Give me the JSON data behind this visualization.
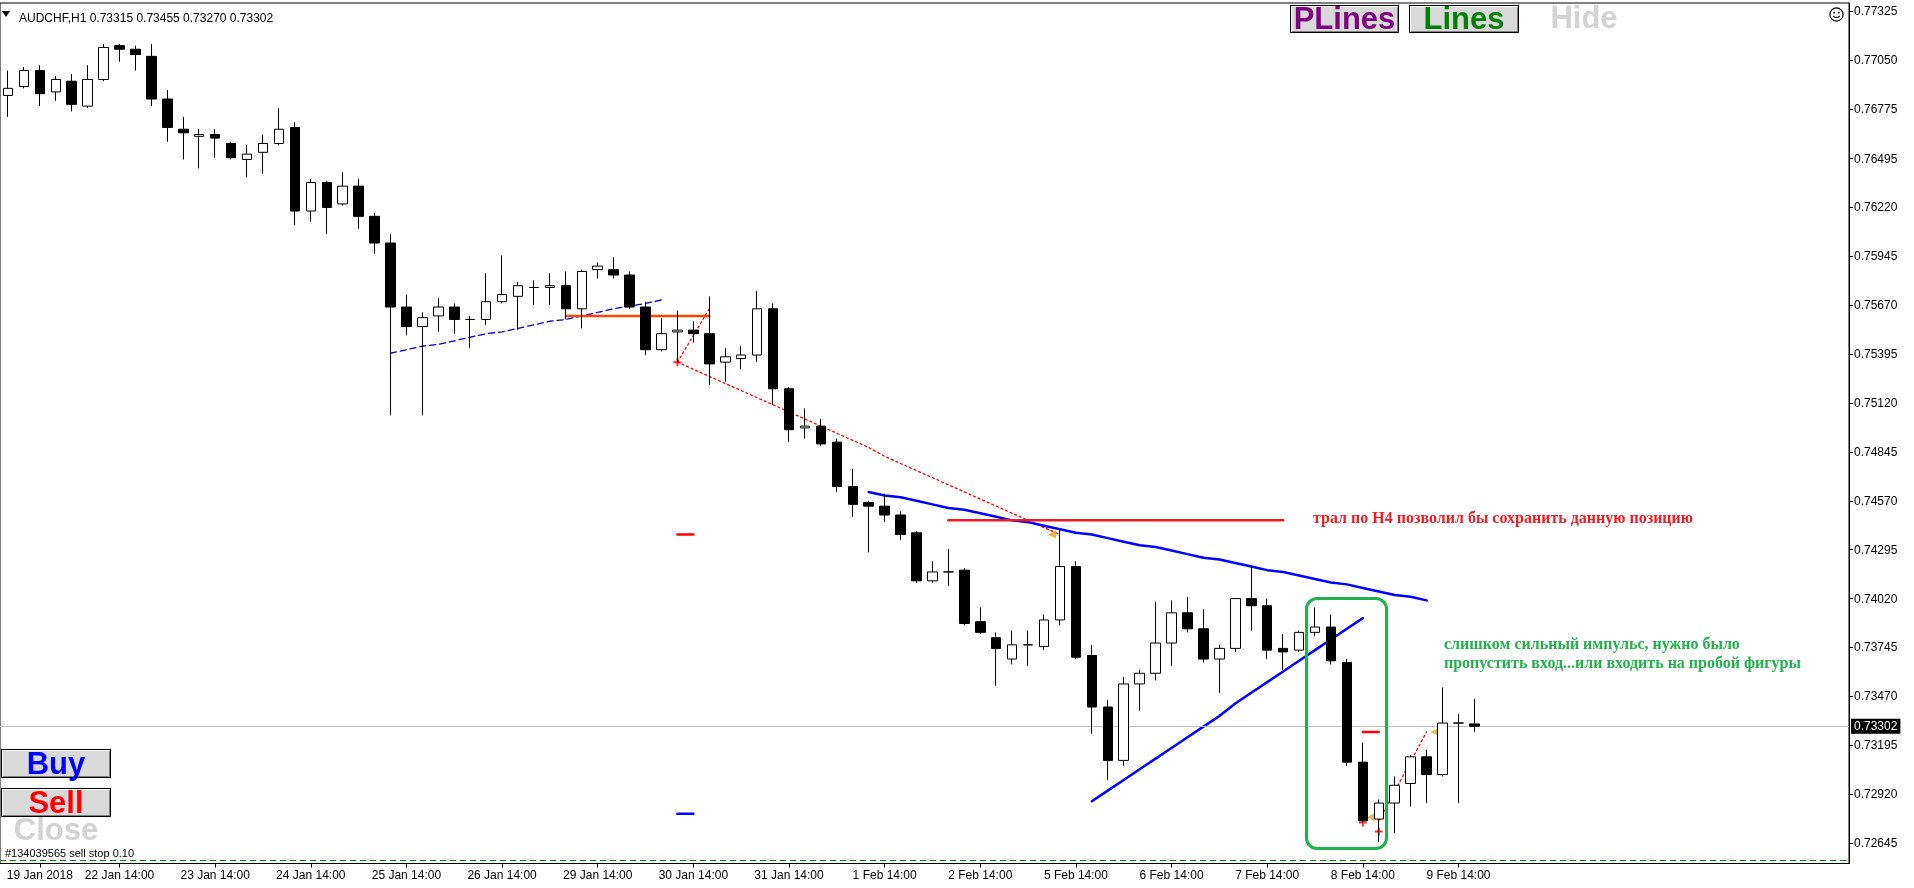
{
  "chart_data": {
    "type": "candlestick",
    "title": "AUDCHF,H1 0.73315 0.73455 0.73270 0.73302",
    "color": "#000000",
    "categories": [
      null,
      null,
      "19 Jan 2018",
      null,
      null,
      null,
      null,
      "22 Jan 14:00",
      null,
      null,
      null,
      null,
      null,
      "23 Jan 14:00",
      null,
      null,
      null,
      null,
      null,
      "24 Jan 14:00",
      null,
      null,
      null,
      null,
      null,
      "25 Jan 14:00",
      null,
      null,
      null,
      null,
      null,
      "26 Jan 14:00",
      null,
      null,
      null,
      null,
      null,
      "29 Jan 14:00",
      null,
      null,
      null,
      null,
      null,
      "30 Jan 14:00",
      null,
      null,
      null,
      null,
      null,
      "31 Jan 14:00",
      null,
      null,
      null,
      null,
      null,
      "1 Feb 14:00",
      null,
      null,
      null,
      null,
      null,
      "2 Feb 14:00",
      null,
      null,
      null,
      null,
      null,
      "5 Feb 14:00",
      null,
      null,
      null,
      null,
      null,
      "6 Feb 14:00",
      null,
      null,
      null,
      null,
      null,
      "7 Feb 14:00",
      null,
      null,
      null,
      null,
      null,
      "8 Feb 14:00",
      null,
      null,
      null,
      null,
      null,
      "9 Feb 14:00",
      null,
      null,
      null,
      null,
      null,
      null,
      null,
      null,
      null,
      null,
      null,
      null,
      null,
      null,
      null,
      null,
      null,
      null,
      null,
      null,
      null,
      null,
      null,
      null
    ],
    "ohlc": [
      [
        0.7685,
        0.7699,
        0.7673,
        0.7689
      ],
      [
        0.769,
        0.7701,
        0.7689,
        0.7699
      ],
      [
        0.7699,
        0.7702,
        0.7679,
        0.7686
      ],
      [
        0.7687,
        0.7696,
        0.7682,
        0.7694
      ],
      [
        0.7693,
        0.7697,
        0.7676,
        0.768
      ],
      [
        0.7679,
        0.7702,
        0.7678,
        0.7694
      ],
      [
        0.7694,
        0.7714,
        0.7693,
        0.7712
      ],
      [
        0.7713,
        0.7714,
        0.7704,
        0.7711
      ],
      [
        0.7711,
        0.7713,
        0.7699,
        0.7708
      ],
      [
        0.7707,
        0.7714,
        0.7679,
        0.7683
      ],
      [
        0.7683,
        0.7688,
        0.7659,
        0.7667
      ],
      [
        0.7666,
        0.7673,
        0.7649,
        0.7664
      ],
      [
        0.7662,
        0.7666,
        0.7644,
        0.7663
      ],
      [
        0.7663,
        0.7666,
        0.765,
        0.7661
      ],
      [
        0.7658,
        0.7659,
        0.7649,
        0.765
      ],
      [
        0.7649,
        0.7657,
        0.7639,
        0.7652
      ],
      [
        0.7653,
        0.7663,
        0.7641,
        0.7658
      ],
      [
        0.7658,
        0.7678,
        0.7657,
        0.7666
      ],
      [
        0.7667,
        0.767,
        0.7612,
        0.762
      ],
      [
        0.762,
        0.7638,
        0.7614,
        0.7636
      ],
      [
        0.7636,
        0.7637,
        0.7607,
        0.7622
      ],
      [
        0.7624,
        0.7642,
        0.7623,
        0.7634
      ],
      [
        0.7634,
        0.7638,
        0.761,
        0.7617
      ],
      [
        0.7617,
        0.7619,
        0.7596,
        0.7602
      ],
      [
        0.7602,
        0.7607,
        0.7505,
        0.7566
      ],
      [
        0.7566,
        0.7573,
        0.755,
        0.7555
      ],
      [
        0.7555,
        0.7563,
        0.7505,
        0.756
      ],
      [
        0.7561,
        0.7571,
        0.7552,
        0.7566
      ],
      [
        0.7566,
        0.7568,
        0.7551,
        0.7559
      ],
      [
        0.7559,
        0.7561,
        0.7543,
        0.7559
      ],
      [
        0.7559,
        0.7585,
        0.7556,
        0.7569
      ],
      [
        0.7569,
        0.7595,
        0.7568,
        0.7573
      ],
      [
        0.7572,
        0.758,
        0.7553,
        0.7578
      ],
      [
        0.7577,
        0.7581,
        0.7567,
        0.7577
      ],
      [
        0.7577,
        0.7585,
        0.7567,
        0.7578
      ],
      [
        0.7578,
        0.7586,
        0.7559,
        0.7565
      ],
      [
        0.7565,
        0.7587,
        0.7554,
        0.7586
      ],
      [
        0.7587,
        0.7591,
        0.7582,
        0.7589
      ],
      [
        0.7587,
        0.7594,
        0.7582,
        0.7584
      ],
      [
        0.7584,
        0.7586,
        0.7565,
        0.7566
      ],
      [
        0.7566,
        0.7569,
        0.7539,
        0.7542
      ],
      [
        0.7542,
        0.756,
        0.7541,
        0.7551
      ],
      [
        0.7552,
        0.7564,
        0.7535,
        0.7553
      ],
      [
        0.7553,
        0.7558,
        0.7546,
        0.7551
      ],
      [
        0.7551,
        0.7572,
        0.7522,
        0.7534
      ],
      [
        0.7535,
        0.7543,
        0.7524,
        0.7538
      ],
      [
        0.7537,
        0.7544,
        0.7531,
        0.7539
      ],
      [
        0.7539,
        0.7575,
        0.7535,
        0.7565
      ],
      [
        0.7565,
        0.7568,
        0.7511,
        0.752
      ],
      [
        0.752,
        0.7521,
        0.749,
        0.7497
      ],
      [
        0.7498,
        0.7509,
        0.7492,
        0.7499
      ],
      [
        0.7499,
        0.7503,
        0.7488,
        0.7489
      ],
      [
        0.749,
        0.7492,
        0.7462,
        0.7465
      ],
      [
        0.7465,
        0.7475,
        0.7448,
        0.7455
      ],
      [
        0.7456,
        0.7457,
        0.7428,
        0.7454
      ],
      [
        0.7454,
        0.7461,
        0.7445,
        0.7449
      ],
      [
        0.7449,
        0.7451,
        0.7435,
        0.7438
      ],
      [
        0.7439,
        0.744,
        0.7411,
        0.7412
      ],
      [
        0.7412,
        0.7423,
        0.7411,
        0.7417
      ],
      [
        0.7417,
        0.743,
        0.7409,
        0.7417
      ],
      [
        0.7418,
        0.7419,
        0.7387,
        0.7388
      ],
      [
        0.7389,
        0.7397,
        0.7382,
        0.7383
      ],
      [
        0.738,
        0.7383,
        0.7353,
        0.7374
      ],
      [
        0.7368,
        0.7384,
        0.7365,
        0.7376
      ],
      [
        0.7376,
        0.7384,
        0.7364,
        0.7376
      ],
      [
        0.7375,
        0.7393,
        0.7373,
        0.739
      ],
      [
        0.739,
        0.7441,
        0.7387,
        0.742
      ],
      [
        0.742,
        0.7423,
        0.7368,
        0.7369
      ],
      [
        0.737,
        0.7376,
        0.7326,
        0.7341
      ],
      [
        0.7341,
        0.7345,
        0.73,
        0.7311
      ],
      [
        0.7311,
        0.7358,
        0.7308,
        0.7354
      ],
      [
        0.7354,
        0.7362,
        0.7339,
        0.736
      ],
      [
        0.736,
        0.74,
        0.7356,
        0.7377
      ],
      [
        0.7377,
        0.7401,
        0.7364,
        0.7394
      ],
      [
        0.7394,
        0.7403,
        0.7383,
        0.7385
      ],
      [
        0.7385,
        0.7396,
        0.7366,
        0.7368
      ],
      [
        0.7368,
        0.7376,
        0.7349,
        0.7374
      ],
      [
        0.7374,
        0.7402,
        0.7372,
        0.7402
      ],
      [
        0.7402,
        0.742,
        0.7384,
        0.7398
      ],
      [
        0.7398,
        0.7402,
        0.7368,
        0.7373
      ],
      [
        0.7374,
        0.7382,
        0.7362,
        0.7372
      ],
      [
        0.7373,
        0.7384,
        0.7372,
        0.7383
      ],
      [
        0.7383,
        0.7397,
        0.7381,
        0.7386
      ],
      [
        0.7386,
        0.7393,
        0.7365,
        0.7367
      ],
      [
        0.7366,
        0.7368,
        0.7308,
        0.731
      ],
      [
        0.731,
        0.7321,
        0.7276,
        0.7277
      ],
      [
        0.7278,
        0.7289,
        0.7265,
        0.7287
      ],
      [
        0.7287,
        0.7302,
        0.727,
        0.7297
      ],
      [
        0.7298,
        0.7314,
        0.7285,
        0.7313
      ],
      [
        0.7313,
        0.7317,
        0.7287,
        0.7303
      ],
      [
        0.7303,
        0.7352,
        0.7302,
        0.7332
      ],
      [
        0.7332,
        0.7337,
        0.7287,
        0.7332
      ],
      [
        0.73315,
        0.73455,
        0.7327,
        0.73302
      ],
      null,
      null,
      null,
      null,
      null,
      null,
      null,
      null,
      null,
      null,
      null,
      null,
      null,
      null,
      null,
      null,
      null,
      null,
      null,
      null,
      null,
      null,
      null
    ],
    "series": [
      {
        "type": "line",
        "color": "#0000cd",
        "line_style": "dashed",
        "values": [
          null,
          null,
          null,
          null,
          null,
          null,
          null,
          null,
          null,
          null,
          null,
          null,
          null,
          null,
          null,
          null,
          null,
          null,
          null,
          null,
          null,
          null,
          null,
          null,
          0.754,
          0.7542,
          0.7544,
          0.7545,
          0.7547,
          0.7549,
          0.7551,
          0.7552,
          0.7554,
          0.7556,
          0.7558,
          0.7559,
          0.7561,
          0.7563,
          0.7565,
          null,
          0.7568,
          0.757,
          null,
          null,
          null,
          null,
          null,
          null,
          null,
          null,
          null,
          null,
          null,
          null,
          null,
          null,
          null,
          null,
          null,
          null,
          null,
          null,
          null,
          null,
          null,
          null,
          null,
          null,
          null,
          null,
          null,
          null,
          null,
          null,
          null,
          null,
          null,
          null,
          null,
          null,
          null,
          null,
          null,
          null,
          null,
          null,
          null,
          null,
          null,
          null,
          null,
          null,
          null,
          null,
          null,
          null,
          null,
          null,
          null,
          null,
          null,
          null,
          null,
          null,
          null,
          null,
          null,
          null,
          null,
          null,
          null,
          null,
          null,
          null,
          null,
          null
        ]
      },
      {
        "type": "line",
        "color": "#ff4500",
        "values": [
          null,
          null,
          null,
          null,
          null,
          null,
          null,
          null,
          null,
          null,
          null,
          null,
          null,
          null,
          null,
          null,
          null,
          null,
          null,
          null,
          null,
          null,
          null,
          null,
          null,
          null,
          null,
          null,
          null,
          null,
          null,
          null,
          null,
          null,
          null,
          0.7561,
          0.7561,
          0.7561,
          0.7561,
          0.7561,
          null,
          0.7561,
          0.7561,
          0.7561,
          0.7561,
          null,
          null,
          null,
          null,
          null,
          null,
          null,
          null,
          null,
          null,
          null,
          null,
          null,
          null,
          null,
          null,
          null,
          null,
          null,
          null,
          null,
          null,
          null,
          null,
          null,
          null,
          null,
          null,
          null,
          null,
          null,
          null,
          null,
          null,
          null,
          null,
          null,
          null,
          null,
          null,
          null,
          null,
          null,
          null,
          null,
          null,
          null,
          null,
          null,
          null,
          null,
          null,
          null,
          null,
          null,
          null,
          null,
          null,
          null,
          null,
          null,
          null,
          null,
          null,
          null,
          null,
          null,
          null,
          null,
          null,
          null
        ]
      },
      {
        "type": "line",
        "color": "#ff0000",
        "line_style": "dotted",
        "values": [
          null,
          null,
          null,
          null,
          null,
          null,
          null,
          null,
          null,
          null,
          null,
          null,
          null,
          null,
          null,
          null,
          null,
          null,
          null,
          null,
          null,
          null,
          null,
          null,
          null,
          null,
          null,
          null,
          null,
          null,
          null,
          null,
          null,
          null,
          null,
          null,
          null,
          null,
          null,
          null,
          null,
          null,
          0.7535,
          0.7531,
          0.7527,
          0.7523,
          0.7519,
          0.7515,
          0.7511,
          null,
          0.7503,
          0.7499,
          0.7495,
          0.7491,
          0.7487,
          0.7482,
          0.7478,
          0.7474,
          0.747,
          0.7466,
          0.7462,
          0.7458,
          0.7454,
          0.745,
          0.7446,
          0.7442,
          0.7438,
          null,
          null,
          null,
          null,
          null,
          null,
          null,
          null,
          null,
          null,
          null,
          null,
          null,
          null,
          null,
          null,
          null,
          null,
          null,
          null,
          null,
          null,
          null,
          null,
          null,
          null,
          null,
          null,
          null,
          null,
          null,
          null,
          null,
          null,
          null,
          null,
          null,
          null,
          null,
          null,
          null,
          null,
          null,
          null,
          null,
          null,
          null,
          null,
          null
        ]
      },
      {
        "type": "line",
        "color": "#ff0000",
        "line_style": "dotted",
        "values": [
          null,
          null,
          null,
          null,
          null,
          null,
          null,
          null,
          null,
          null,
          null,
          null,
          null,
          null,
          null,
          null,
          null,
          null,
          null,
          null,
          null,
          null,
          null,
          null,
          null,
          null,
          null,
          null,
          null,
          null,
          null,
          null,
          null,
          null,
          null,
          null,
          null,
          null,
          null,
          null,
          null,
          null,
          0.7535,
          0.755,
          0.7565,
          null,
          null,
          null,
          null,
          null,
          null,
          null,
          null,
          null,
          null,
          null,
          null,
          null,
          null,
          null,
          null,
          null,
          null,
          null,
          null,
          null,
          null,
          null,
          null,
          null,
          null,
          null,
          null,
          null,
          null,
          null,
          null,
          null,
          null,
          null,
          null,
          null,
          null,
          null,
          null,
          null,
          null,
          null,
          null,
          null,
          null,
          null,
          null,
          null,
          null,
          null,
          null,
          null,
          null,
          null,
          null,
          null,
          null,
          null,
          null,
          null,
          null,
          null,
          null,
          null,
          null,
          null,
          null,
          null,
          null,
          null
        ]
      },
      {
        "type": "line",
        "color": "#0000ff",
        "values": [
          null,
          null,
          null,
          null,
          null,
          null,
          null,
          null,
          null,
          null,
          null,
          null,
          null,
          null,
          null,
          null,
          null,
          null,
          null,
          null,
          null,
          null,
          null,
          null,
          null,
          null,
          null,
          null,
          null,
          null,
          null,
          null,
          null,
          null,
          null,
          null,
          null,
          null,
          null,
          null,
          null,
          null,
          null,
          null,
          null,
          null,
          null,
          null,
          null,
          null,
          null,
          null,
          null,
          null,
          0.7462,
          0.746,
          0.7459,
          0.7457,
          0.7455,
          0.7453,
          0.7452,
          0.745,
          0.7448,
          0.7446,
          0.7445,
          0.7443,
          0.7441,
          0.7439,
          0.7438,
          0.7436,
          0.7434,
          0.7432,
          0.7431,
          0.7429,
          0.7427,
          0.7425,
          0.7424,
          0.7422,
          0.742,
          0.7418,
          0.7417,
          0.7415,
          0.7413,
          0.7411,
          0.741,
          0.7408,
          0.7406,
          0.7404,
          0.7403,
          0.7401,
          null,
          null,
          null,
          null,
          null,
          null,
          null,
          null,
          null,
          null,
          null,
          null,
          null,
          null,
          null,
          null,
          null,
          null,
          null,
          null,
          null,
          null,
          null,
          null,
          null,
          null
        ]
      },
      {
        "type": "line",
        "color": "#0000ff",
        "values": [
          null,
          null,
          null,
          null,
          null,
          null,
          null,
          null,
          null,
          null,
          null,
          null,
          null,
          null,
          null,
          null,
          null,
          null,
          null,
          null,
          null,
          null,
          null,
          null,
          null,
          null,
          null,
          null,
          null,
          null,
          null,
          null,
          null,
          null,
          null,
          null,
          null,
          null,
          null,
          null,
          null,
          null,
          null,
          null,
          null,
          null,
          null,
          null,
          null,
          null,
          null,
          null,
          null,
          null,
          null,
          null,
          null,
          null,
          null,
          null,
          null,
          null,
          null,
          null,
          null,
          null,
          null,
          null,
          0.7288,
          0.7294,
          0.73,
          0.7306,
          0.7312,
          0.7318,
          0.7324,
          0.733,
          0.7336,
          0.7343,
          0.7349,
          0.7355,
          0.7361,
          0.7367,
          0.7373,
          null,
          0.7385,
          0.7391,
          null,
          null,
          null,
          null,
          null,
          null,
          null,
          null,
          null,
          null,
          null,
          null,
          null,
          null,
          null,
          null,
          null,
          null,
          null,
          null,
          null,
          null,
          null,
          null,
          null,
          null,
          null,
          null,
          null,
          null
        ]
      },
      {
        "type": "line",
        "color": "#ed1c24",
        "values": [
          null,
          null,
          null,
          null,
          null,
          null,
          null,
          null,
          null,
          null,
          null,
          null,
          null,
          null,
          null,
          null,
          null,
          null,
          null,
          null,
          null,
          null,
          null,
          null,
          null,
          null,
          null,
          null,
          null,
          null,
          null,
          null,
          null,
          null,
          null,
          null,
          null,
          null,
          null,
          null,
          null,
          null,
          null,
          null,
          null,
          null,
          null,
          null,
          null,
          null,
          null,
          null,
          null,
          null,
          null,
          null,
          null,
          null,
          null,
          0.7446,
          0.7446,
          0.7446,
          0.7446,
          0.7446,
          0.7446,
          0.7446,
          0.7446,
          0.7446,
          0.7446,
          0.7446,
          0.7446,
          0.7446,
          0.7446,
          0.7446,
          0.7446,
          0.7446,
          0.7446,
          0.7446,
          0.7446,
          0.7446,
          0.7446,
          null,
          null,
          null,
          null,
          null,
          null,
          null,
          null,
          null,
          null,
          null,
          null,
          null,
          null,
          null,
          null,
          null,
          null,
          null,
          null,
          null,
          null,
          null,
          null,
          null,
          null,
          null,
          null,
          null,
          null,
          null,
          null,
          null,
          null,
          null
        ]
      },
      {
        "type": "line",
        "color": "#ff0000",
        "line_style": "dotted",
        "values": [
          null,
          null,
          null,
          null,
          null,
          null,
          null,
          null,
          null,
          null,
          null,
          null,
          null,
          null,
          null,
          null,
          null,
          null,
          null,
          null,
          null,
          null,
          null,
          null,
          null,
          null,
          null,
          null,
          null,
          null,
          null,
          null,
          null,
          null,
          null,
          null,
          null,
          null,
          null,
          null,
          null,
          null,
          null,
          null,
          null,
          null,
          null,
          null,
          null,
          null,
          null,
          null,
          null,
          null,
          null,
          null,
          null,
          null,
          null,
          null,
          null,
          null,
          null,
          null,
          null,
          null,
          null,
          null,
          null,
          null,
          null,
          null,
          null,
          null,
          null,
          null,
          null,
          null,
          null,
          null,
          null,
          null,
          null,
          null,
          null,
          null,
          0.7277,
          null,
          null,
          0.7327,
          null,
          null,
          null,
          null,
          null,
          null,
          null,
          null,
          null,
          null,
          null,
          null,
          null,
          null,
          null,
          null,
          null,
          null,
          null,
          null,
          null,
          null,
          null,
          null,
          null,
          null
        ]
      },
      {
        "type": "line",
        "color": "#ff0000",
        "values": [
          null,
          null,
          null,
          null,
          null,
          null,
          null,
          null,
          null,
          null,
          null,
          null,
          null,
          null,
          null,
          null,
          null,
          null,
          null,
          null,
          null,
          null,
          null,
          null,
          null,
          null,
          null,
          null,
          null,
          null,
          null,
          null,
          null,
          null,
          null,
          null,
          null,
          null,
          null,
          null,
          null,
          null,
          0.7438,
          0.7438,
          null,
          null,
          null,
          null,
          null,
          null,
          null,
          null,
          null,
          null,
          null,
          null,
          null,
          null,
          null,
          null,
          null,
          null,
          null,
          null,
          null,
          null,
          null,
          null,
          null,
          null,
          null,
          null,
          null,
          null,
          null,
          null,
          null,
          null,
          null,
          null,
          null,
          null,
          null,
          null,
          null,
          null,
          null,
          null,
          null,
          null,
          null,
          null,
          null,
          null,
          null,
          null,
          null,
          null,
          null,
          null,
          null,
          null,
          null,
          null,
          null,
          null,
          null,
          null,
          null,
          null,
          null,
          null,
          null,
          null,
          null,
          null
        ]
      },
      {
        "type": "line",
        "color": "#0000ff",
        "values": [
          null,
          null,
          null,
          null,
          null,
          null,
          null,
          null,
          null,
          null,
          null,
          null,
          null,
          null,
          null,
          null,
          null,
          null,
          null,
          null,
          null,
          null,
          null,
          null,
          null,
          null,
          null,
          null,
          null,
          null,
          null,
          null,
          null,
          null,
          null,
          null,
          null,
          null,
          null,
          null,
          null,
          null,
          0.7281,
          0.7281,
          null,
          null,
          null,
          null,
          null,
          null,
          null,
          null,
          null,
          null,
          null,
          null,
          null,
          null,
          null,
          null,
          null,
          null,
          null,
          null,
          null,
          null,
          null,
          null,
          null,
          null,
          null,
          null,
          null,
          null,
          null,
          null,
          null,
          null,
          null,
          null,
          null,
          null,
          null,
          null,
          null,
          null,
          null,
          null,
          null,
          null,
          null,
          null,
          null,
          null,
          null,
          null,
          null,
          null,
          null,
          null,
          null,
          null,
          null,
          null,
          null,
          null,
          null,
          null,
          null,
          null,
          null,
          null,
          null,
          null,
          null,
          null
        ]
      },
      {
        "type": "line",
        "color": "#ff0000",
        "values": [
          null,
          null,
          null,
          null,
          null,
          null,
          null,
          null,
          null,
          null,
          null,
          null,
          null,
          null,
          null,
          null,
          null,
          null,
          null,
          null,
          null,
          null,
          null,
          null,
          null,
          null,
          null,
          null,
          null,
          null,
          null,
          null,
          null,
          null,
          null,
          null,
          null,
          null,
          null,
          null,
          null,
          null,
          null,
          null,
          null,
          null,
          null,
          null,
          null,
          null,
          null,
          null,
          null,
          null,
          null,
          null,
          null,
          null,
          null,
          null,
          null,
          null,
          null,
          null,
          null,
          null,
          null,
          null,
          null,
          null,
          null,
          null,
          null,
          null,
          null,
          null,
          null,
          null,
          null,
          null,
          null,
          null,
          null,
          null,
          null,
          0.7327,
          0.7327,
          null,
          null,
          null,
          null,
          null,
          null,
          null,
          null,
          null,
          null,
          null,
          null,
          null,
          null,
          null,
          null,
          null,
          null,
          null,
          null,
          null,
          null,
          null,
          null,
          null,
          null,
          null,
          null,
          null
        ]
      },
      {
        "type": "scatter",
        "marker": "triangle",
        "color": "#e6a020",
        "values": [
          null,
          null,
          null,
          null,
          null,
          null,
          null,
          null,
          null,
          null,
          null,
          null,
          null,
          null,
          null,
          null,
          null,
          null,
          null,
          null,
          null,
          null,
          null,
          null,
          null,
          null,
          null,
          null,
          null,
          null,
          null,
          null,
          null,
          null,
          null,
          null,
          null,
          null,
          null,
          null,
          null,
          null,
          null,
          null,
          null,
          null,
          null,
          null,
          null,
          null,
          null,
          null,
          null,
          null,
          null,
          null,
          null,
          null,
          null,
          null,
          null,
          null,
          null,
          null,
          null,
          null,
          0.7438,
          null,
          null,
          null,
          null,
          null,
          null,
          null,
          null,
          null,
          null,
          null,
          null,
          null,
          null,
          null,
          null,
          null,
          null,
          null,
          0.7279,
          null,
          null,
          null,
          0.7327,
          null,
          null,
          null,
          null,
          null,
          null,
          null,
          null,
          null,
          null,
          null,
          null,
          null,
          null,
          null,
          null,
          null,
          null,
          null,
          null,
          null,
          null,
          null,
          null,
          null
        ]
      },
      {
        "type": "scatter",
        "marker": "cross",
        "color": "#ff0000",
        "values": [
          null,
          null,
          null,
          null,
          null,
          null,
          null,
          null,
          null,
          null,
          null,
          null,
          null,
          null,
          null,
          null,
          null,
          null,
          null,
          null,
          null,
          null,
          null,
          null,
          null,
          null,
          null,
          null,
          null,
          null,
          null,
          null,
          null,
          null,
          null,
          null,
          null,
          null,
          null,
          null,
          null,
          null,
          0.7535,
          null,
          null,
          null,
          null,
          null,
          null,
          null,
          null,
          null,
          null,
          null,
          null,
          null,
          null,
          null,
          null,
          null,
          null,
          null,
          null,
          null,
          null,
          null,
          null,
          null,
          null,
          null,
          null,
          null,
          null,
          null,
          null,
          null,
          null,
          null,
          null,
          null,
          null,
          null,
          null,
          null,
          null,
          0.7276,
          0.7271,
          null,
          null,
          null,
          null,
          null,
          null,
          null,
          null,
          null,
          null,
          null,
          null,
          null,
          null,
          null,
          null,
          null,
          null,
          null,
          null,
          null,
          null,
          null,
          null,
          null,
          null,
          null,
          null,
          null
        ]
      }
    ],
    "ref_lines": [
      {
        "axis": "y",
        "value": 0.73302,
        "label": "0.73302",
        "color": "#c0c0c0"
      },
      {
        "axis": "y",
        "value": 0.7255,
        "label": "#134039565 sell stop 0.10",
        "color": "#008000",
        "line_style": "dashed"
      }
    ],
    "annotations": [
      "трал по H4 позволил бы сохранить данную позицию",
      "слишком сильный импульс, нужно было\nпропустить вход...или входить на пробой фигуры",
      "PLines",
      "Lines",
      "Hide",
      "Buy",
      "Sell",
      "Close"
    ],
    "ylim": [
      0.7253,
      0.7737
    ],
    "yticks": [
      0.77325,
      {
        "value": 0.7705,
        "label": "0.77050"
      },
      0.76775,
      0.76495,
      {
        "value": 0.7622,
        "label": "0.76220"
      },
      0.75945,
      {
        "value": 0.7567,
        "label": "0.75670"
      },
      0.75395,
      {
        "value": 0.7512,
        "label": "0.75120"
      },
      0.74845,
      {
        "value": 0.7457,
        "label": "0.74570"
      },
      0.74295,
      {
        "value": 0.7402,
        "label": "0.74020"
      },
      0.73745,
      {
        "value": 0.7347,
        "label": "0.73470"
      },
      0.73195,
      {
        "value": 0.7292,
        "label": "0.72920"
      },
      0.72645
    ]
  }
}
